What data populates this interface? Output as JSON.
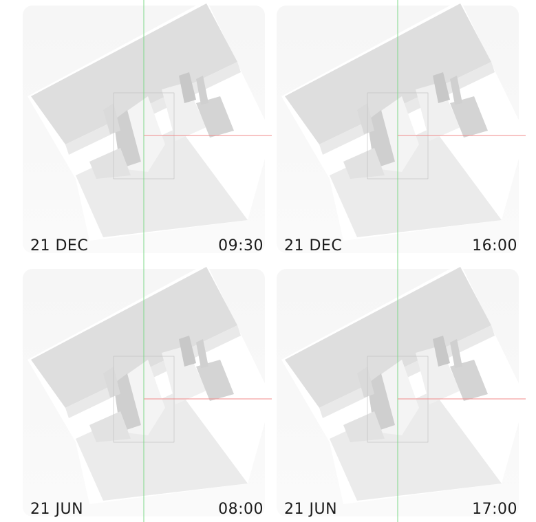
{
  "panels": [
    {
      "date": "21 DEC",
      "time": "09:30"
    },
    {
      "date": "21 DEC",
      "time": "16:00"
    },
    {
      "date": "21 JUN",
      "time": "08:00"
    },
    {
      "date": "21 JUN",
      "time": "17:00"
    }
  ]
}
